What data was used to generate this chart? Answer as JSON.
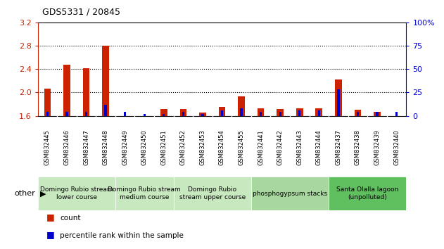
{
  "title": "GDS5331 / 20845",
  "samples": [
    "GSM832445",
    "GSM832446",
    "GSM832447",
    "GSM832448",
    "GSM832449",
    "GSM832450",
    "GSM832451",
    "GSM832452",
    "GSM832453",
    "GSM832454",
    "GSM832455",
    "GSM832441",
    "GSM832442",
    "GSM832443",
    "GSM832444",
    "GSM832437",
    "GSM832438",
    "GSM832439",
    "GSM832440"
  ],
  "count_values": [
    2.07,
    2.47,
    2.42,
    2.8,
    1.6,
    1.6,
    1.72,
    1.72,
    1.65,
    1.75,
    1.93,
    1.73,
    1.72,
    1.73,
    1.73,
    2.22,
    1.7,
    1.67,
    1.6
  ],
  "percentile_values": [
    4,
    4,
    4,
    12,
    4,
    2,
    2,
    4,
    2,
    6,
    8,
    4,
    4,
    6,
    6,
    28,
    4,
    4,
    4
  ],
  "y_min": 1.6,
  "y_max": 3.2,
  "y_ticks_left": [
    1.6,
    2.0,
    2.4,
    2.8,
    3.2
  ],
  "y_ticks_right": [
    0,
    25,
    50,
    75,
    100
  ],
  "groups": [
    {
      "label": "Domingo Rubio stream\nlower course",
      "start": 0,
      "end": 3,
      "color": "#c8e8c0"
    },
    {
      "label": "Domingo Rubio stream\nmedium course",
      "start": 4,
      "end": 6,
      "color": "#c8e8c0"
    },
    {
      "label": "Domingo Rubio\nstream upper course",
      "start": 7,
      "end": 10,
      "color": "#c8e8c0"
    },
    {
      "label": "phosphogypsum stacks",
      "start": 11,
      "end": 14,
      "color": "#a8d8a0"
    },
    {
      "label": "Santa Olalla lagoon\n(unpolluted)",
      "start": 15,
      "end": 18,
      "color": "#60c060"
    }
  ],
  "count_color": "#cc2200",
  "percentile_color": "#0000cc",
  "bar_width": 0.35,
  "percentile_bar_width": 0.12,
  "other_label": "other",
  "legend_count": "count",
  "legend_percentile": "percentile rank within the sample",
  "xtick_bg": "#c8c8c8",
  "spine_color": "#000000"
}
